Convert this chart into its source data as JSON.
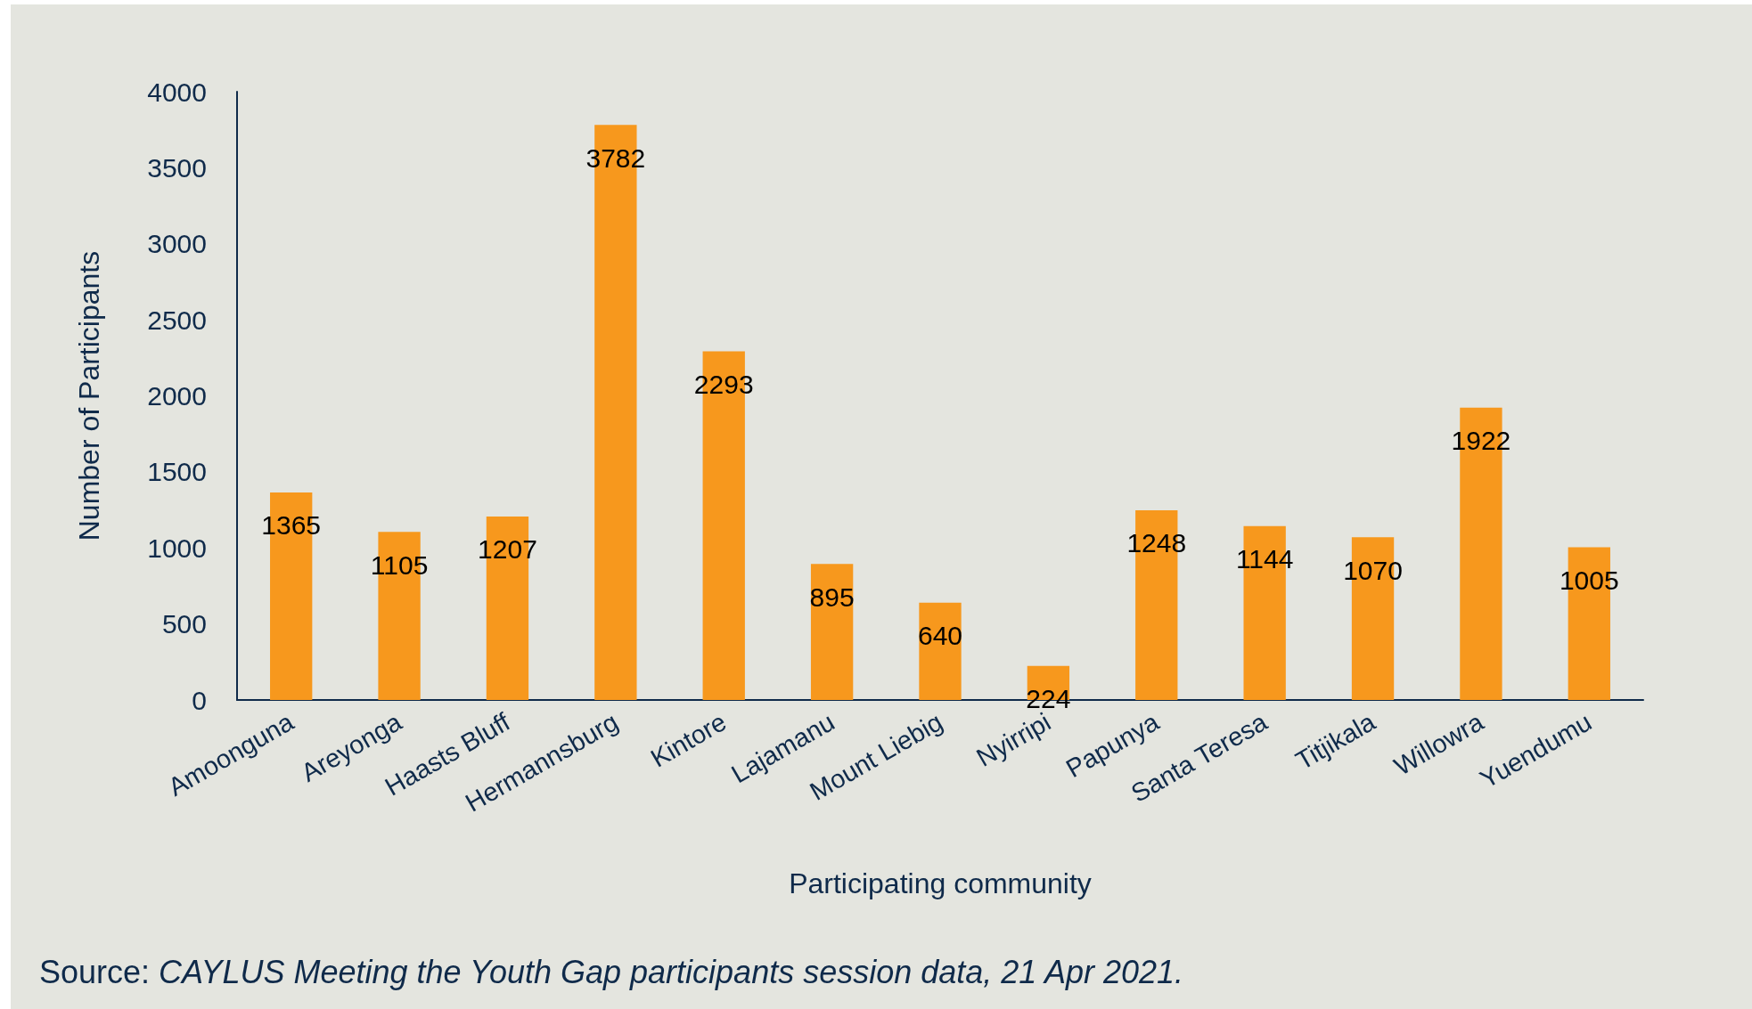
{
  "chart_data": {
    "type": "bar",
    "xlabel": "Participating community",
    "ylabel": "Number of Participants",
    "categories": [
      "Amoonguna",
      "Areyonga",
      "Haasts Bluff",
      "Hermannsburg",
      "Kintore",
      "Lajamanu",
      "Mount Liebig",
      "Nyirripi",
      "Papunya",
      "Santa Teresa",
      "Titjikala",
      "Willowra",
      "Yuendumu"
    ],
    "values": [
      1365,
      1105,
      1207,
      3782,
      2293,
      895,
      640,
      224,
      1248,
      1144,
      1070,
      1922,
      1005
    ],
    "color": "#f7981d",
    "ylim": [
      0,
      4000
    ],
    "yticks": [
      0,
      500,
      1000,
      1500,
      2000,
      2500,
      3000,
      3500,
      4000
    ],
    "data_labels": true,
    "annotations": [
      "Source: CAYLUS Meeting the Youth Gap participants session data, 21 Apr 2021."
    ]
  }
}
